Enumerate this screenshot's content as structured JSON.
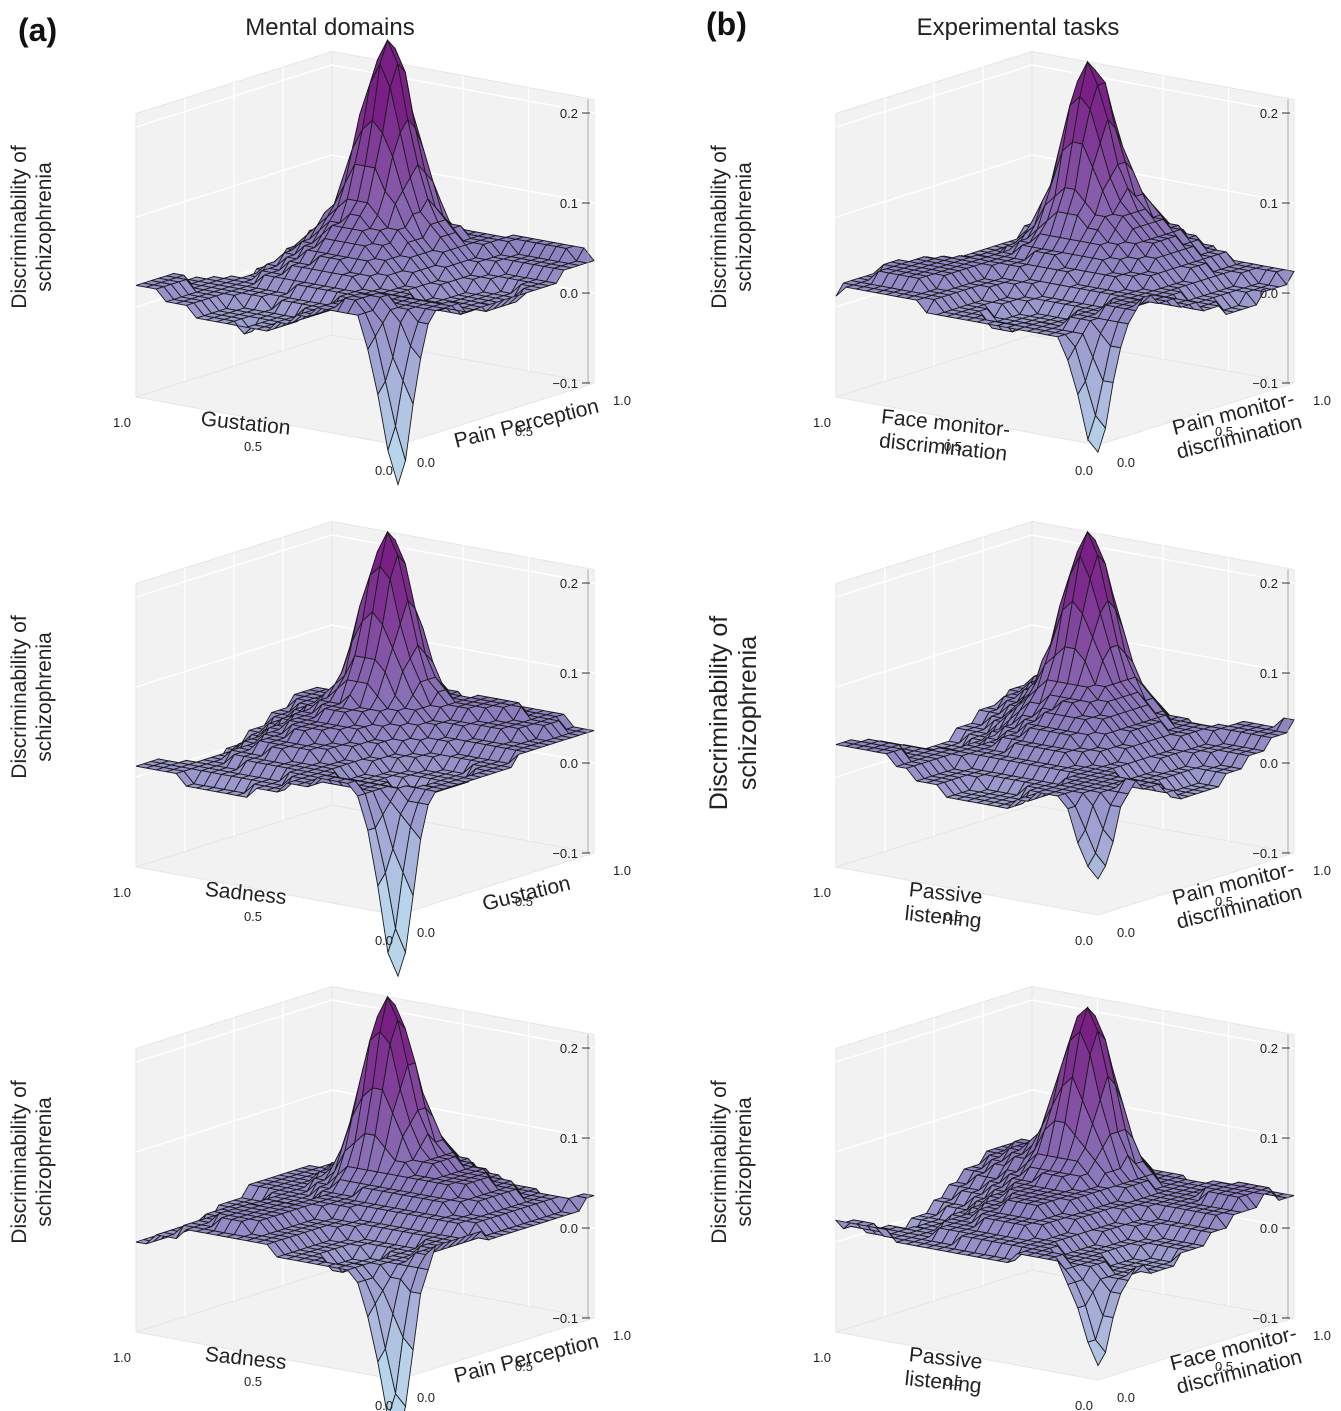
{
  "panels": {
    "a": {
      "letter": "(a)",
      "title": "Mental domains"
    },
    "b": {
      "letter": "(b)",
      "title": "Experimental tasks"
    }
  },
  "colors": {
    "surface_top": "#7a1f86",
    "surface_mid": "#8d7fc0",
    "surface_low": "#b8d4ea",
    "edge": "#1a1a1a",
    "pane": "#f2f2f2",
    "grid": "#ffffff"
  },
  "chart_data": [
    {
      "type": "surface",
      "panel": "a",
      "zlabel_line1": "Discriminability of",
      "zlabel_line2": "schizophrenia",
      "xlabel": "Gustation",
      "ylabel": "Pain Perception",
      "xlabel_lines": [
        "Gustation"
      ],
      "ylabel_lines": [
        "Pain Perception"
      ],
      "x_ticks": [
        "1.0",
        "0.5",
        "0.0"
      ],
      "y_ticks": [
        "0.0",
        "0.5",
        "1.0"
      ],
      "z_ticks": [
        "0.2",
        "0.1",
        "0.0",
        "−0.1"
      ],
      "xlim": [
        0,
        1
      ],
      "ylim": [
        0,
        1
      ],
      "zlim": [
        -0.1,
        0.2
      ],
      "peak": 0.2,
      "trough": -0.18,
      "grid": true
    },
    {
      "type": "surface",
      "panel": "b",
      "zlabel_line1": "Discriminability of",
      "zlabel_line2": "schizophrenia",
      "xlabel": "Face monitor-discrimination",
      "ylabel": "Pain monitor-discrimination",
      "xlabel_lines": [
        "Face monitor-",
        "discrimination"
      ],
      "ylabel_lines": [
        "Pain monitor-",
        "discrimination"
      ],
      "x_ticks": [
        "1.0",
        "0.5",
        "0.0"
      ],
      "y_ticks": [
        "0.0",
        "0.5",
        "1.0"
      ],
      "z_ticks": [
        "0.2",
        "0.1",
        "0.0",
        "−0.1"
      ],
      "xlim": [
        0,
        1
      ],
      "ylim": [
        0,
        1
      ],
      "zlim": [
        -0.1,
        0.2
      ],
      "peak": 0.18,
      "trough": -0.14,
      "grid": true
    },
    {
      "type": "surface",
      "panel": "a",
      "zlabel_line1": "Discriminability of",
      "zlabel_line2": "schizophrenia",
      "xlabel": "Sadness",
      "ylabel": "Gustation",
      "xlabel_lines": [
        "Sadness"
      ],
      "ylabel_lines": [
        "Gustation"
      ],
      "x_ticks": [
        "1.0",
        "0.5",
        "0.0"
      ],
      "y_ticks": [
        "0.0",
        "0.5",
        "1.0"
      ],
      "z_ticks": [
        "0.2",
        "0.1",
        "0.0",
        "−0.1"
      ],
      "xlim": [
        0,
        1
      ],
      "ylim": [
        0,
        1
      ],
      "zlim": [
        -0.1,
        0.2
      ],
      "peak": 0.2,
      "trough": -0.2,
      "grid": true
    },
    {
      "type": "surface",
      "panel": "b",
      "zlabel_line1": "Discriminability of",
      "zlabel_line2": "schizophrenia",
      "xlabel": "Passive listening",
      "ylabel": "Pain monitor-discrimination",
      "xlabel_lines": [
        "Passive",
        "listening"
      ],
      "ylabel_lines": [
        "Pain monitor-",
        "discrimination"
      ],
      "x_ticks": [
        "1.0",
        "0.5",
        "0.0"
      ],
      "y_ticks": [
        "0.0",
        "0.5",
        "1.0"
      ],
      "z_ticks": [
        "0.2",
        "0.1",
        "0.0",
        "−0.1"
      ],
      "xlim": [
        0,
        1
      ],
      "ylim": [
        0,
        1
      ],
      "zlim": [
        -0.1,
        0.2
      ],
      "peak": 0.18,
      "trough": -0.11,
      "grid": true
    },
    {
      "type": "surface",
      "panel": "a",
      "zlabel_line1": "Discriminability of",
      "zlabel_line2": "schizophrenia",
      "xlabel": "Sadness",
      "ylabel": "Pain Perception",
      "xlabel_lines": [
        "Sadness"
      ],
      "ylabel_lines": [
        "Pain Perception"
      ],
      "x_ticks": [
        "1.0",
        "0.5",
        "0.0"
      ],
      "y_ticks": [
        "0.0",
        "0.5",
        "1.0"
      ],
      "z_ticks": [
        "0.2",
        "0.1",
        "0.0",
        "−0.1"
      ],
      "xlim": [
        0,
        1
      ],
      "ylim": [
        0,
        1
      ],
      "zlim": [
        -0.1,
        0.2
      ],
      "peak": 0.2,
      "trough": -0.2,
      "grid": true
    },
    {
      "type": "surface",
      "panel": "b",
      "zlabel_line1": "Discriminability of",
      "zlabel_line2": "schizophrenia",
      "xlabel": "Passive listening",
      "ylabel": "Face monitor-discrimination",
      "xlabel_lines": [
        "Passive",
        "listening"
      ],
      "ylabel_lines": [
        "Face monitor-",
        "discrimination"
      ],
      "x_ticks": [
        "1.0",
        "0.5",
        "0.0"
      ],
      "y_ticks": [
        "0.0",
        "0.5",
        "1.0"
      ],
      "z_ticks": [
        "0.2",
        "0.1",
        "0.0",
        "−0.1"
      ],
      "xlim": [
        0,
        1
      ],
      "ylim": [
        0,
        1
      ],
      "zlim": [
        -0.1,
        0.2
      ],
      "peak": 0.19,
      "trough": -0.11,
      "grid": true
    }
  ]
}
